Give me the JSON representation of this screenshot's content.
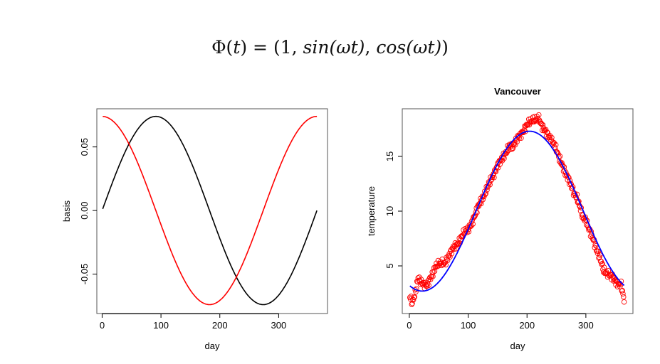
{
  "slide": {
    "formula": {
      "lhs": "Φ(",
      "t": "t",
      "eq": ") = (1, ",
      "sin": "sin",
      "wt1": "(ωt)",
      "comma": ", ",
      "cos": "cos",
      "wt2": "(ωt)",
      "close": ")"
    }
  },
  "chart_data": [
    {
      "type": "line",
      "title": "",
      "xlabel": "day",
      "ylabel": "basis",
      "xlim": [
        -9,
        383
      ],
      "ylim": [
        -0.081,
        0.08
      ],
      "xticks": [
        0,
        100,
        200,
        300
      ],
      "xtick_labels": [
        "0",
        "100",
        "200",
        "300"
      ],
      "yticks": [
        -0.05,
        0,
        0.05
      ],
      "ytick_labels": [
        "-0.05",
        "0.00",
        "0.05"
      ],
      "grid": false,
      "series": [
        {
          "function": "0.074*sin(2*pi*day/365)",
          "color": "#000000",
          "x_range": [
            1,
            365
          ]
        },
        {
          "function": "0.074*cos(2*pi*day/365)",
          "color": "#ff0000",
          "x_range": [
            1,
            365
          ]
        }
      ]
    },
    {
      "type": "scatter",
      "title": "Vancouver",
      "xlabel": "day",
      "ylabel": "temperature",
      "xlim": [
        -12,
        380
      ],
      "ylim": [
        0.65,
        19.35
      ],
      "xticks": [
        0,
        100,
        200,
        300
      ],
      "xtick_labels": [
        "0",
        "100",
        "200",
        "300"
      ],
      "yticks": [
        5,
        10,
        15
      ],
      "ytick_labels": [
        "5",
        "10",
        "15"
      ],
      "grid": false,
      "points_color": "#ff0000",
      "points": {
        "x": [
          1,
          5,
          10,
          15,
          20,
          25,
          30,
          35,
          40,
          45,
          50,
          55,
          60,
          65,
          70,
          75,
          80,
          85,
          90,
          95,
          100,
          105,
          110,
          115,
          120,
          125,
          130,
          135,
          140,
          145,
          150,
          155,
          160,
          165,
          170,
          175,
          180,
          185,
          190,
          195,
          200,
          205,
          210,
          215,
          220,
          225,
          230,
          235,
          240,
          245,
          250,
          255,
          260,
          265,
          270,
          275,
          280,
          285,
          290,
          295,
          300,
          305,
          310,
          315,
          320,
          325,
          330,
          335,
          340,
          345,
          350,
          355,
          360,
          365
        ],
        "y": [
          2.2,
          1.6,
          2.5,
          3.9,
          3.5,
          3.3,
          3.2,
          3.8,
          4.3,
          5.0,
          5.2,
          5.3,
          5.2,
          5.7,
          6.2,
          6.7,
          6.9,
          7.2,
          7.8,
          8.2,
          8.3,
          8.8,
          9.4,
          10.2,
          10.8,
          11.2,
          11.8,
          12.5,
          13.0,
          13.5,
          14.2,
          14.6,
          15.0,
          15.4,
          16.0,
          15.8,
          16.3,
          16.8,
          17.0,
          17.4,
          17.9,
          18.2,
          18.3,
          18.4,
          18.5,
          17.8,
          17.4,
          17.0,
          16.6,
          16.2,
          15.6,
          14.8,
          14.2,
          13.5,
          13.0,
          12.4,
          11.6,
          11.2,
          10.4,
          9.4,
          9.2,
          8.4,
          7.8,
          7.0,
          6.2,
          5.6,
          4.6,
          4.3,
          4.2,
          4.0,
          3.6,
          3.3,
          3.3,
          1.8
        ]
      },
      "fit": {
        "function": "10 - 7.3*cos(2*pi*(day-22)/365)",
        "color": "#0000ff",
        "x_range": [
          1,
          365
        ]
      }
    }
  ]
}
